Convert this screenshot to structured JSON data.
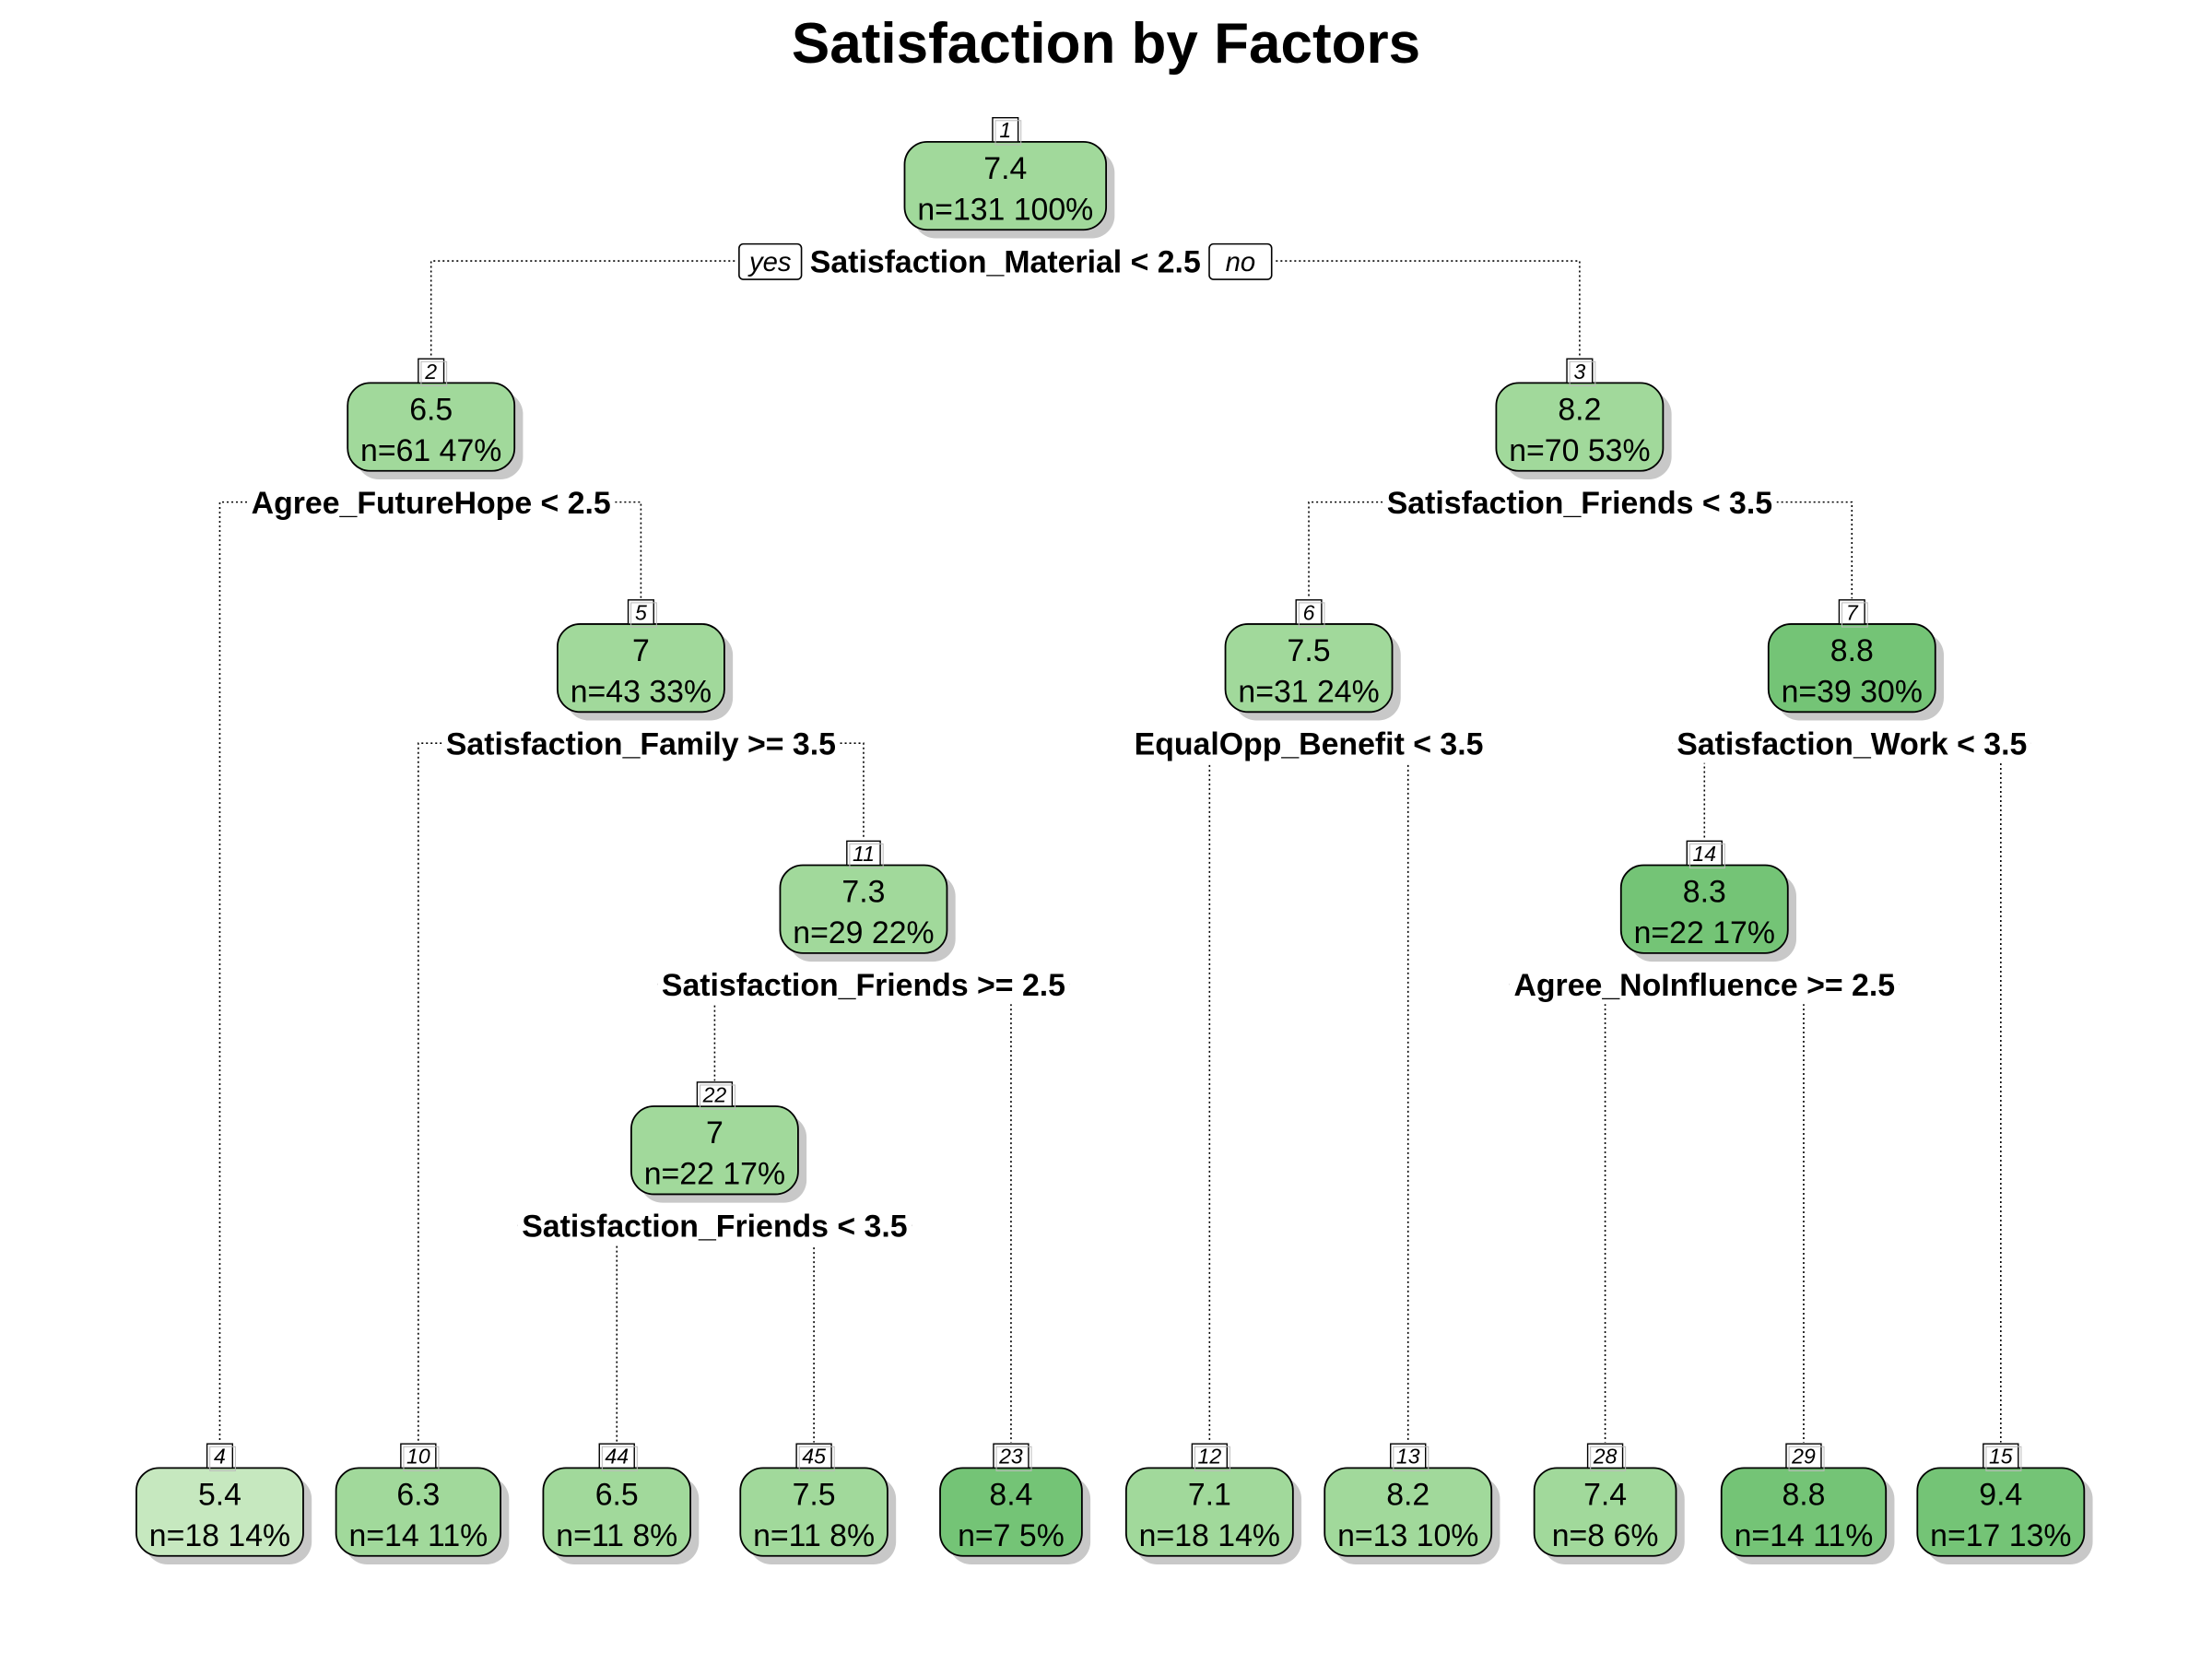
{
  "title": "Satisfaction by Factors",
  "colors": {
    "light": "#c6e8bf",
    "medium": "#a1d99b",
    "dark": "#74c476",
    "edge": "#000000",
    "shadow": "#c8c8c8"
  },
  "branch_labels": {
    "yes": "yes",
    "no": "no"
  },
  "nodes": [
    {
      "id": "1",
      "value": "7.4",
      "n": "n=131",
      "pct": "100%",
      "shade": "medium"
    },
    {
      "id": "2",
      "value": "6.5",
      "n": "n=61",
      "pct": "47%",
      "shade": "medium"
    },
    {
      "id": "3",
      "value": "8.2",
      "n": "n=70",
      "pct": "53%",
      "shade": "medium"
    },
    {
      "id": "5",
      "value": "7",
      "n": "n=43",
      "pct": "33%",
      "shade": "medium"
    },
    {
      "id": "6",
      "value": "7.5",
      "n": "n=31",
      "pct": "24%",
      "shade": "medium"
    },
    {
      "id": "7",
      "value": "8.8",
      "n": "n=39",
      "pct": "30%",
      "shade": "dark"
    },
    {
      "id": "11",
      "value": "7.3",
      "n": "n=29",
      "pct": "22%",
      "shade": "medium"
    },
    {
      "id": "14",
      "value": "8.3",
      "n": "n=22",
      "pct": "17%",
      "shade": "dark"
    },
    {
      "id": "22",
      "value": "7",
      "n": "n=22",
      "pct": "17%",
      "shade": "medium"
    },
    {
      "id": "4",
      "value": "5.4",
      "n": "n=18",
      "pct": "14%",
      "shade": "light"
    },
    {
      "id": "10",
      "value": "6.3",
      "n": "n=14",
      "pct": "11%",
      "shade": "medium"
    },
    {
      "id": "44",
      "value": "6.5",
      "n": "n=11",
      "pct": "8%",
      "shade": "medium"
    },
    {
      "id": "45",
      "value": "7.5",
      "n": "n=11",
      "pct": "8%",
      "shade": "medium"
    },
    {
      "id": "23",
      "value": "8.4",
      "n": "n=7",
      "pct": "5%",
      "shade": "dark"
    },
    {
      "id": "12",
      "value": "7.1",
      "n": "n=18",
      "pct": "14%",
      "shade": "medium"
    },
    {
      "id": "13",
      "value": "8.2",
      "n": "n=13",
      "pct": "10%",
      "shade": "medium"
    },
    {
      "id": "28",
      "value": "7.4",
      "n": "n=8",
      "pct": "6%",
      "shade": "medium"
    },
    {
      "id": "29",
      "value": "8.8",
      "n": "n=14",
      "pct": "11%",
      "shade": "dark"
    },
    {
      "id": "15",
      "value": "9.4",
      "n": "n=17",
      "pct": "13%",
      "shade": "dark"
    }
  ],
  "splits": [
    {
      "node": "1",
      "label": "Satisfaction_Material < 2.5",
      "yes": "2",
      "no": "3"
    },
    {
      "node": "2",
      "label": "Agree_FutureHope < 2.5",
      "yes": "4",
      "no": "5"
    },
    {
      "node": "3",
      "label": "Satisfaction_Friends < 3.5",
      "yes": "6",
      "no": "7"
    },
    {
      "node": "5",
      "label": "Satisfaction_Family >= 3.5",
      "yes": "10",
      "no": "11"
    },
    {
      "node": "6",
      "label": "EqualOpp_Benefit < 3.5",
      "yes": "12",
      "no": "13"
    },
    {
      "node": "7",
      "label": "Satisfaction_Work < 3.5",
      "yes": "14",
      "no": "15"
    },
    {
      "node": "11",
      "label": "Satisfaction_Friends >= 2.5",
      "yes": "22",
      "no": "23"
    },
    {
      "node": "14",
      "label": "Agree_NoInfluence >= 2.5",
      "yes": "28",
      "no": "29"
    },
    {
      "node": "22",
      "label": "Satisfaction_Friends < 3.5",
      "yes": "44",
      "no": "45"
    }
  ]
}
